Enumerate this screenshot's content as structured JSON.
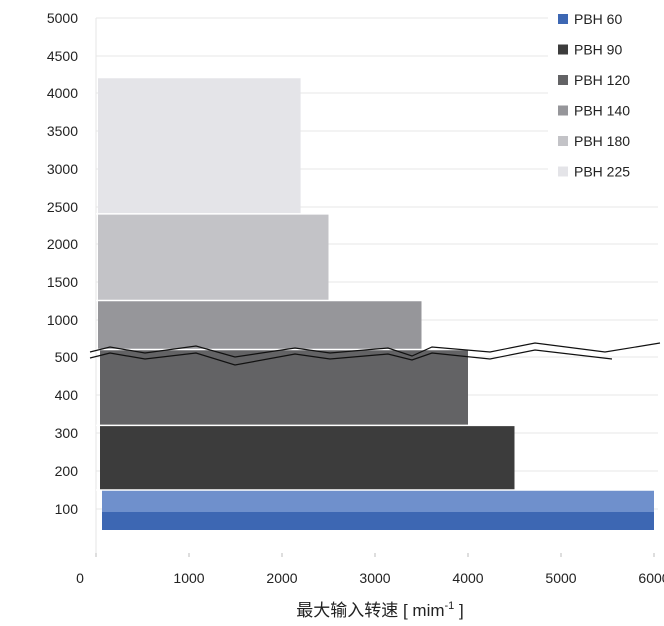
{
  "chart_data": {
    "type": "bar",
    "orientation": "horizontal-step",
    "xlabel": "最大输入转速 [ mim⁻¹ ]",
    "xlabel_main": "最大输入转速 [ mim",
    "xlabel_sup": "-1",
    "xlabel_end": " ]",
    "xlim": [
      0,
      6000
    ],
    "x_ticks": [
      "0",
      "1000",
      "2000",
      "3000",
      "4000",
      "5000",
      "6000"
    ],
    "y_ticks": [
      "5000",
      "4500",
      "4000",
      "3500",
      "3000",
      "2500",
      "2000",
      "1500",
      "1000",
      "500",
      "400",
      "300",
      "200",
      "100"
    ],
    "y_axis_break": true,
    "legend_position": "top-right",
    "series": [
      {
        "name": "PBH 60",
        "color": "#3d67b3",
        "light_color": "#6f90cc",
        "max_speed": 6000,
        "max_value": 150
      },
      {
        "name": "PBH 90",
        "color": "#3c3c3c",
        "max_speed": 4500,
        "max_value": 320
      },
      {
        "name": "PBH 120",
        "color": "#636365",
        "max_speed": 4000,
        "max_value": 600
      },
      {
        "name": "PBH 140",
        "color": "#96969a",
        "max_speed": 3500,
        "max_value": 1250
      },
      {
        "name": "PBH 180",
        "color": "#c3c3c7",
        "max_speed": 2500,
        "max_value": 2400
      },
      {
        "name": "PBH 225",
        "color": "#e4e4e8",
        "max_speed": 2200,
        "max_value": 4200
      }
    ]
  }
}
